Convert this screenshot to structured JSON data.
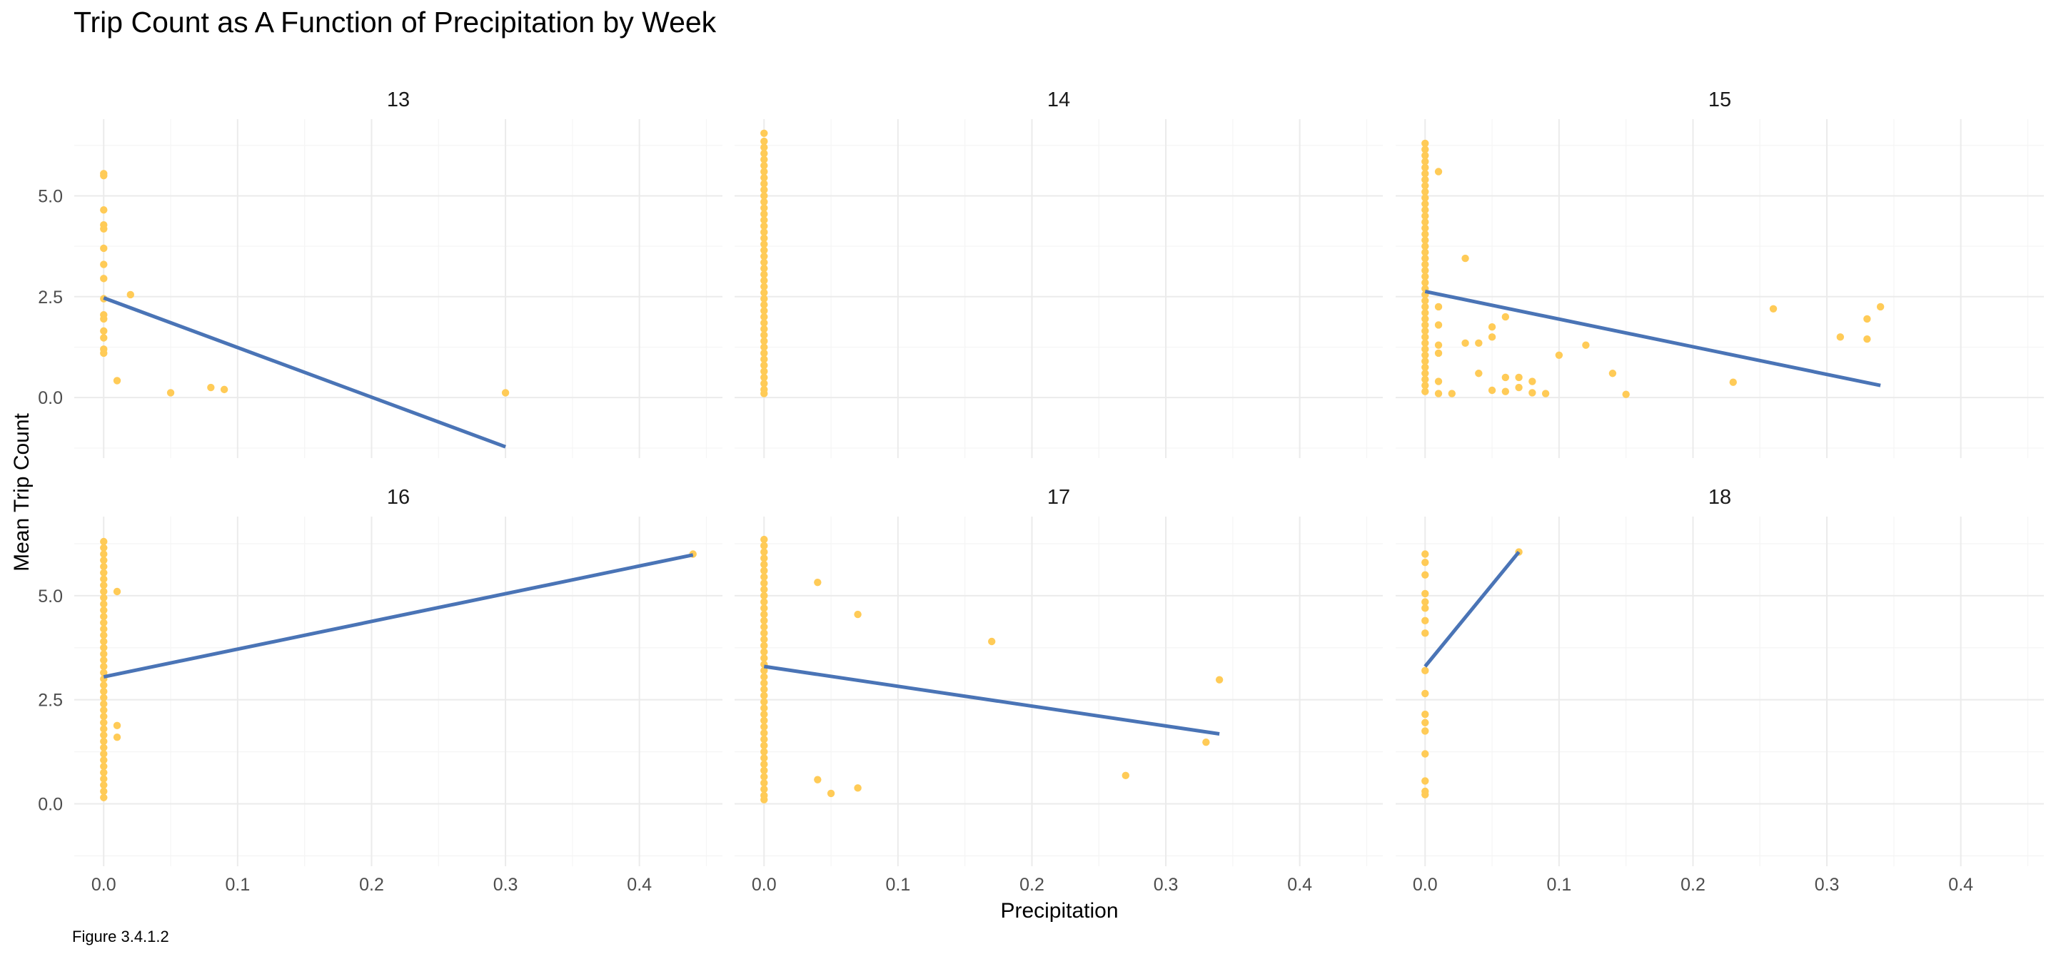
{
  "title": "Trip Count as A Function of Precipitation by Week",
  "caption": "Figure 3.4.1.2",
  "colors": {
    "points": "#FFCB57",
    "line": "#4A74B6",
    "grid_major": "#EBEBEB",
    "grid_minor": "#F5F5F5"
  },
  "chart_data": {
    "type": "scatter",
    "facet_by": "week",
    "xlabel": "Precipitation",
    "ylabel": "Mean Trip Count",
    "xlim": [
      -0.022,
      0.462
    ],
    "ylim": [
      -1.5,
      6.9
    ],
    "x_ticks": [
      "0.0",
      "0.1",
      "0.2",
      "0.3",
      "0.4"
    ],
    "y_ticks": [
      "0.0",
      "2.5",
      "5.0"
    ],
    "grid": true,
    "panels": [
      {
        "label": "13",
        "trend": {
          "x": [
            0.0,
            0.3
          ],
          "y": [
            2.47,
            -1.22
          ]
        },
        "points": [
          [
            0,
            5.5
          ],
          [
            0,
            5.55
          ],
          [
            0,
            4.65
          ],
          [
            0,
            4.28
          ],
          [
            0,
            4.18
          ],
          [
            0,
            3.7
          ],
          [
            0,
            3.3
          ],
          [
            0,
            2.95
          ],
          [
            0,
            2.45
          ],
          [
            0,
            2.05
          ],
          [
            0,
            1.95
          ],
          [
            0,
            1.65
          ],
          [
            0,
            1.48
          ],
          [
            0,
            1.2
          ],
          [
            0,
            1.1
          ],
          [
            0.01,
            0.42
          ],
          [
            0.02,
            2.55
          ],
          [
            0.05,
            0.12
          ],
          [
            0.08,
            0.25
          ],
          [
            0.09,
            0.2
          ],
          [
            0.3,
            0.12
          ]
        ]
      },
      {
        "label": "14",
        "trend": null,
        "points": [
          [
            0,
            6.55
          ],
          [
            0,
            6.35
          ],
          [
            0,
            6.2
          ],
          [
            0,
            6.05
          ],
          [
            0,
            5.9
          ],
          [
            0,
            5.75
          ],
          [
            0,
            5.6
          ],
          [
            0,
            5.45
          ],
          [
            0,
            5.3
          ],
          [
            0,
            5.15
          ],
          [
            0,
            5.0
          ],
          [
            0,
            4.85
          ],
          [
            0,
            4.7
          ],
          [
            0,
            4.55
          ],
          [
            0,
            4.4
          ],
          [
            0,
            4.25
          ],
          [
            0,
            4.1
          ],
          [
            0,
            3.95
          ],
          [
            0,
            3.8
          ],
          [
            0,
            3.65
          ],
          [
            0,
            3.5
          ],
          [
            0,
            3.35
          ],
          [
            0,
            3.2
          ],
          [
            0,
            3.05
          ],
          [
            0,
            2.9
          ],
          [
            0,
            2.75
          ],
          [
            0,
            2.6
          ],
          [
            0,
            2.45
          ],
          [
            0,
            2.3
          ],
          [
            0,
            2.15
          ],
          [
            0,
            2.0
          ],
          [
            0,
            1.85
          ],
          [
            0,
            1.7
          ],
          [
            0,
            1.55
          ],
          [
            0,
            1.4
          ],
          [
            0,
            1.25
          ],
          [
            0,
            1.1
          ],
          [
            0,
            0.95
          ],
          [
            0,
            0.8
          ],
          [
            0,
            0.65
          ],
          [
            0,
            0.5
          ],
          [
            0,
            0.35
          ],
          [
            0,
            0.2
          ],
          [
            0,
            0.1
          ]
        ]
      },
      {
        "label": "15",
        "trend": {
          "x": [
            0.0,
            0.34
          ],
          "y": [
            2.63,
            0.3
          ]
        },
        "points": [
          [
            0,
            6.3
          ],
          [
            0,
            6.15
          ],
          [
            0,
            6.0
          ],
          [
            0,
            5.85
          ],
          [
            0,
            5.7
          ],
          [
            0,
            5.55
          ],
          [
            0,
            5.4
          ],
          [
            0,
            5.25
          ],
          [
            0,
            5.1
          ],
          [
            0,
            4.95
          ],
          [
            0,
            4.8
          ],
          [
            0,
            4.65
          ],
          [
            0,
            4.5
          ],
          [
            0,
            4.35
          ],
          [
            0,
            4.2
          ],
          [
            0,
            4.05
          ],
          [
            0,
            3.9
          ],
          [
            0,
            3.75
          ],
          [
            0,
            3.6
          ],
          [
            0,
            3.45
          ],
          [
            0,
            3.3
          ],
          [
            0,
            3.15
          ],
          [
            0,
            3.0
          ],
          [
            0,
            2.85
          ],
          [
            0,
            2.7
          ],
          [
            0,
            2.55
          ],
          [
            0,
            2.4
          ],
          [
            0,
            2.25
          ],
          [
            0,
            2.1
          ],
          [
            0,
            1.95
          ],
          [
            0,
            1.8
          ],
          [
            0,
            1.65
          ],
          [
            0,
            1.5
          ],
          [
            0,
            1.35
          ],
          [
            0,
            1.2
          ],
          [
            0,
            1.05
          ],
          [
            0,
            0.9
          ],
          [
            0,
            0.75
          ],
          [
            0,
            0.6
          ],
          [
            0,
            0.45
          ],
          [
            0,
            0.3
          ],
          [
            0,
            0.15
          ],
          [
            0.01,
            5.6
          ],
          [
            0.01,
            2.25
          ],
          [
            0.01,
            1.8
          ],
          [
            0.01,
            1.3
          ],
          [
            0.01,
            1.1
          ],
          [
            0.01,
            0.4
          ],
          [
            0.01,
            0.1
          ],
          [
            0.02,
            0.1
          ],
          [
            0.03,
            3.45
          ],
          [
            0.03,
            1.35
          ],
          [
            0.04,
            0.6
          ],
          [
            0.04,
            1.35
          ],
          [
            0.05,
            1.75
          ],
          [
            0.05,
            1.5
          ],
          [
            0.05,
            0.18
          ],
          [
            0.06,
            2.0
          ],
          [
            0.06,
            0.5
          ],
          [
            0.06,
            0.15
          ],
          [
            0.07,
            0.5
          ],
          [
            0.07,
            0.25
          ],
          [
            0.08,
            0.4
          ],
          [
            0.08,
            0.12
          ],
          [
            0.09,
            0.1
          ],
          [
            0.1,
            1.05
          ],
          [
            0.12,
            1.3
          ],
          [
            0.14,
            0.6
          ],
          [
            0.15,
            0.08
          ],
          [
            0.23,
            0.38
          ],
          [
            0.26,
            2.2
          ],
          [
            0.31,
            1.5
          ],
          [
            0.33,
            1.95
          ],
          [
            0.33,
            1.45
          ],
          [
            0.34,
            2.25
          ]
        ]
      },
      {
        "label": "16",
        "trend": {
          "x": [
            0.0,
            0.44
          ],
          "y": [
            3.05,
            5.98
          ]
        },
        "points": [
          [
            0,
            6.3
          ],
          [
            0,
            6.15
          ],
          [
            0,
            6.0
          ],
          [
            0,
            5.85
          ],
          [
            0,
            5.7
          ],
          [
            0,
            5.55
          ],
          [
            0,
            5.4
          ],
          [
            0,
            5.25
          ],
          [
            0,
            5.1
          ],
          [
            0,
            4.95
          ],
          [
            0,
            4.8
          ],
          [
            0,
            4.65
          ],
          [
            0,
            4.5
          ],
          [
            0,
            4.35
          ],
          [
            0,
            4.2
          ],
          [
            0,
            4.05
          ],
          [
            0,
            3.9
          ],
          [
            0,
            3.75
          ],
          [
            0,
            3.6
          ],
          [
            0,
            3.45
          ],
          [
            0,
            3.3
          ],
          [
            0,
            3.15
          ],
          [
            0,
            3.0
          ],
          [
            0,
            2.85
          ],
          [
            0,
            2.7
          ],
          [
            0,
            2.55
          ],
          [
            0,
            2.4
          ],
          [
            0,
            2.25
          ],
          [
            0,
            2.1
          ],
          [
            0,
            1.95
          ],
          [
            0,
            1.8
          ],
          [
            0,
            1.65
          ],
          [
            0,
            1.5
          ],
          [
            0,
            1.35
          ],
          [
            0,
            1.2
          ],
          [
            0,
            1.05
          ],
          [
            0,
            0.9
          ],
          [
            0,
            0.75
          ],
          [
            0,
            0.6
          ],
          [
            0,
            0.45
          ],
          [
            0,
            0.3
          ],
          [
            0,
            0.15
          ],
          [
            0.01,
            5.1
          ],
          [
            0.01,
            1.88
          ],
          [
            0.01,
            1.6
          ],
          [
            0.44,
            6.0
          ]
        ]
      },
      {
        "label": "17",
        "trend": {
          "x": [
            0.0,
            0.34
          ],
          "y": [
            3.3,
            1.68
          ]
        },
        "points": [
          [
            0,
            6.35
          ],
          [
            0,
            6.2
          ],
          [
            0,
            6.05
          ],
          [
            0,
            5.9
          ],
          [
            0,
            5.75
          ],
          [
            0,
            5.6
          ],
          [
            0,
            5.45
          ],
          [
            0,
            5.3
          ],
          [
            0,
            5.15
          ],
          [
            0,
            5.0
          ],
          [
            0,
            4.85
          ],
          [
            0,
            4.7
          ],
          [
            0,
            4.55
          ],
          [
            0,
            4.4
          ],
          [
            0,
            4.25
          ],
          [
            0,
            4.1
          ],
          [
            0,
            3.95
          ],
          [
            0,
            3.8
          ],
          [
            0,
            3.65
          ],
          [
            0,
            3.5
          ],
          [
            0,
            3.35
          ],
          [
            0,
            3.2
          ],
          [
            0,
            3.05
          ],
          [
            0,
            2.9
          ],
          [
            0,
            2.75
          ],
          [
            0,
            2.6
          ],
          [
            0,
            2.45
          ],
          [
            0,
            2.3
          ],
          [
            0,
            2.15
          ],
          [
            0,
            2.0
          ],
          [
            0,
            1.85
          ],
          [
            0,
            1.7
          ],
          [
            0,
            1.55
          ],
          [
            0,
            1.4
          ],
          [
            0,
            1.25
          ],
          [
            0,
            1.1
          ],
          [
            0,
            0.95
          ],
          [
            0,
            0.8
          ],
          [
            0,
            0.65
          ],
          [
            0,
            0.5
          ],
          [
            0,
            0.35
          ],
          [
            0,
            0.2
          ],
          [
            0,
            0.1
          ],
          [
            0.04,
            5.32
          ],
          [
            0.04,
            0.58
          ],
          [
            0.05,
            0.25
          ],
          [
            0.07,
            4.55
          ],
          [
            0.07,
            0.38
          ],
          [
            0.17,
            3.9
          ],
          [
            0.27,
            0.68
          ],
          [
            0.33,
            1.48
          ],
          [
            0.34,
            2.98
          ]
        ]
      },
      {
        "label": "18",
        "trend": {
          "x": [
            0.0,
            0.07
          ],
          "y": [
            3.3,
            6.05
          ]
        },
        "points": [
          [
            0,
            6.0
          ],
          [
            0,
            5.8
          ],
          [
            0,
            5.5
          ],
          [
            0,
            5.05
          ],
          [
            0,
            4.85
          ],
          [
            0,
            4.7
          ],
          [
            0,
            4.4
          ],
          [
            0,
            4.1
          ],
          [
            0,
            3.2
          ],
          [
            0,
            2.65
          ],
          [
            0,
            2.15
          ],
          [
            0,
            1.95
          ],
          [
            0,
            1.75
          ],
          [
            0,
            1.2
          ],
          [
            0,
            0.55
          ],
          [
            0,
            0.3
          ],
          [
            0,
            0.22
          ],
          [
            0.07,
            6.05
          ]
        ]
      }
    ]
  }
}
